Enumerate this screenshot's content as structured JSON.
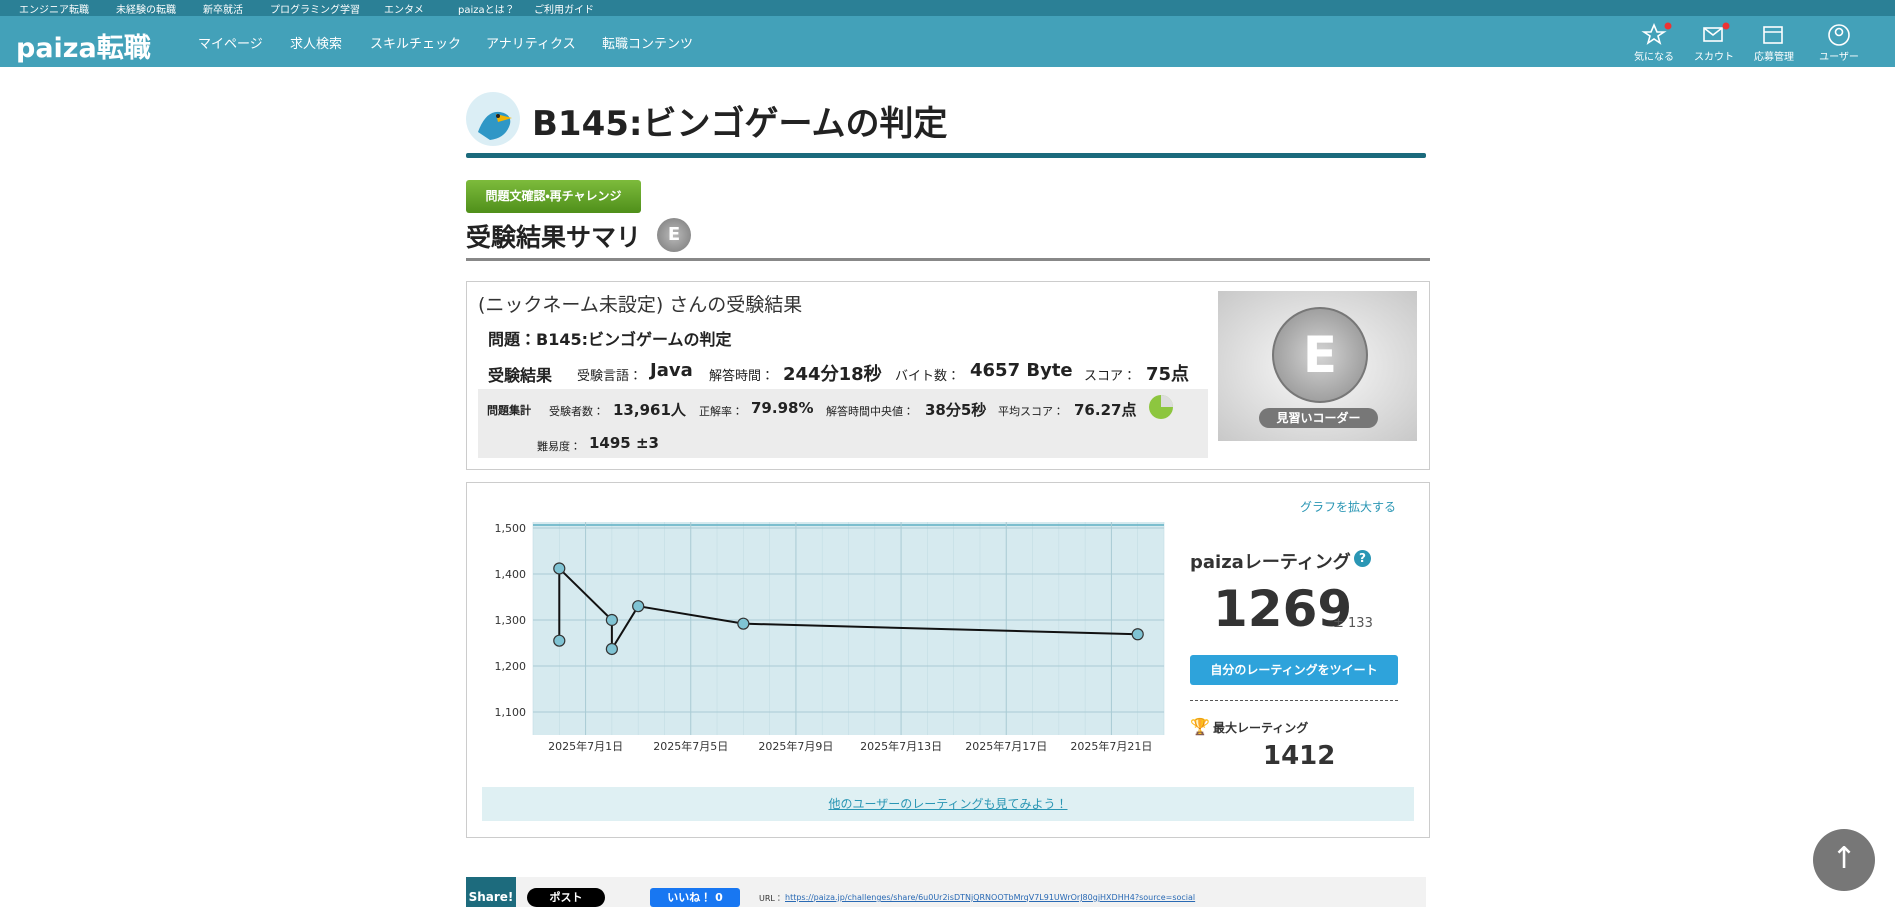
{
  "nav": {
    "top_links": [
      "エンジニア転職",
      "未経験の転職",
      "新卒就活",
      "プログラミング学習",
      "エンタメ",
      "paizaとは？",
      "ご利用ガイド"
    ],
    "logo": "paiza転職",
    "menu": [
      "マイページ",
      "求人検索",
      "スキルチェック",
      "アナリティクス",
      "転職コンテンツ"
    ],
    "icons": [
      "気になる",
      "スカウト",
      "応募管理",
      "ユーザー"
    ]
  },
  "header": {
    "title": "B145:ビンゴゲームの判定",
    "button": "問題文確認・再チャレンジ",
    "section_title": "受験結果サマリ",
    "rank_badge": "E"
  },
  "result": {
    "heading": "(ニックネーム未設定) さんの受験結果",
    "problem": "問題：B145:ビンゴゲームの判定",
    "label": "受験結果",
    "language_label": "受験言語：",
    "language": "Java",
    "time_label": "解答時間：",
    "time": "244分18秒",
    "bytes_label": "バイト数：",
    "bytes": "4657 Byte",
    "score_label": "スコア：",
    "score": "75点"
  },
  "stats": {
    "label": "問題集計",
    "examinees_label": "受験者数：",
    "examinees": "13,961人",
    "accuracy_label": "正解率：",
    "accuracy": "79.98%",
    "median_label": "解答時間中央値：",
    "median": "38分5秒",
    "avg_label": "平均スコア：",
    "avg": "76.27点",
    "difficulty_label": "難易度：",
    "difficulty": "1495 ±3"
  },
  "medal": {
    "letter": "E",
    "label": "見習いコーダー"
  },
  "chart_data": {
    "type": "line",
    "x": [
      "2025-06-30",
      "2025-06-30",
      "2025-07-02",
      "2025-07-02",
      "2025-07-03",
      "2025-07-07",
      "2025-07-22"
    ],
    "values": [
      1255,
      1412,
      1300,
      1237,
      1330,
      1292,
      1269
    ],
    "color": "#111111",
    "marker_color": "#7fc3d3",
    "xlim": [
      "2025-06-29",
      "2025-07-23"
    ],
    "xticks": [
      {
        "value": "2025-07-01",
        "label": "2025年7月1日"
      },
      {
        "value": "2025-07-05",
        "label": "2025年7月5日"
      },
      {
        "value": "2025-07-09",
        "label": "2025年7月9日"
      },
      {
        "value": "2025-07-13",
        "label": "2025年7月13日"
      },
      {
        "value": "2025-07-17",
        "label": "2025年7月17日"
      },
      {
        "value": "2025-07-21",
        "label": "2025年7月21日"
      }
    ],
    "ylim": [
      1050,
      1513
    ],
    "yticks": [
      {
        "value": 1100,
        "label": "1,100"
      },
      {
        "value": 1200,
        "label": "1,200"
      },
      {
        "value": 1300,
        "label": "1,300"
      },
      {
        "value": 1400,
        "label": "1,400"
      },
      {
        "value": 1500,
        "label": "1,500"
      }
    ],
    "grid": true
  },
  "rating": {
    "expand_link": "グラフを拡大する",
    "title": "paizaレーティング",
    "value": "1269",
    "error": "± 133",
    "tweet": "自分のレーティングをツイート",
    "max_label": "最大レーティング",
    "max": "1412",
    "others_link": "他のユーザーのレーティングも見てみよう！"
  },
  "share": {
    "label": "Share!",
    "post": "ポスト",
    "like": "いいね！ 0",
    "url_label": "URL：",
    "url": "https://paiza.jp/challenges/share/6u0Ur2isDTNjQRNOOTbMrqV7L91UWrOrJ80gjHXDHH4?source=social"
  }
}
